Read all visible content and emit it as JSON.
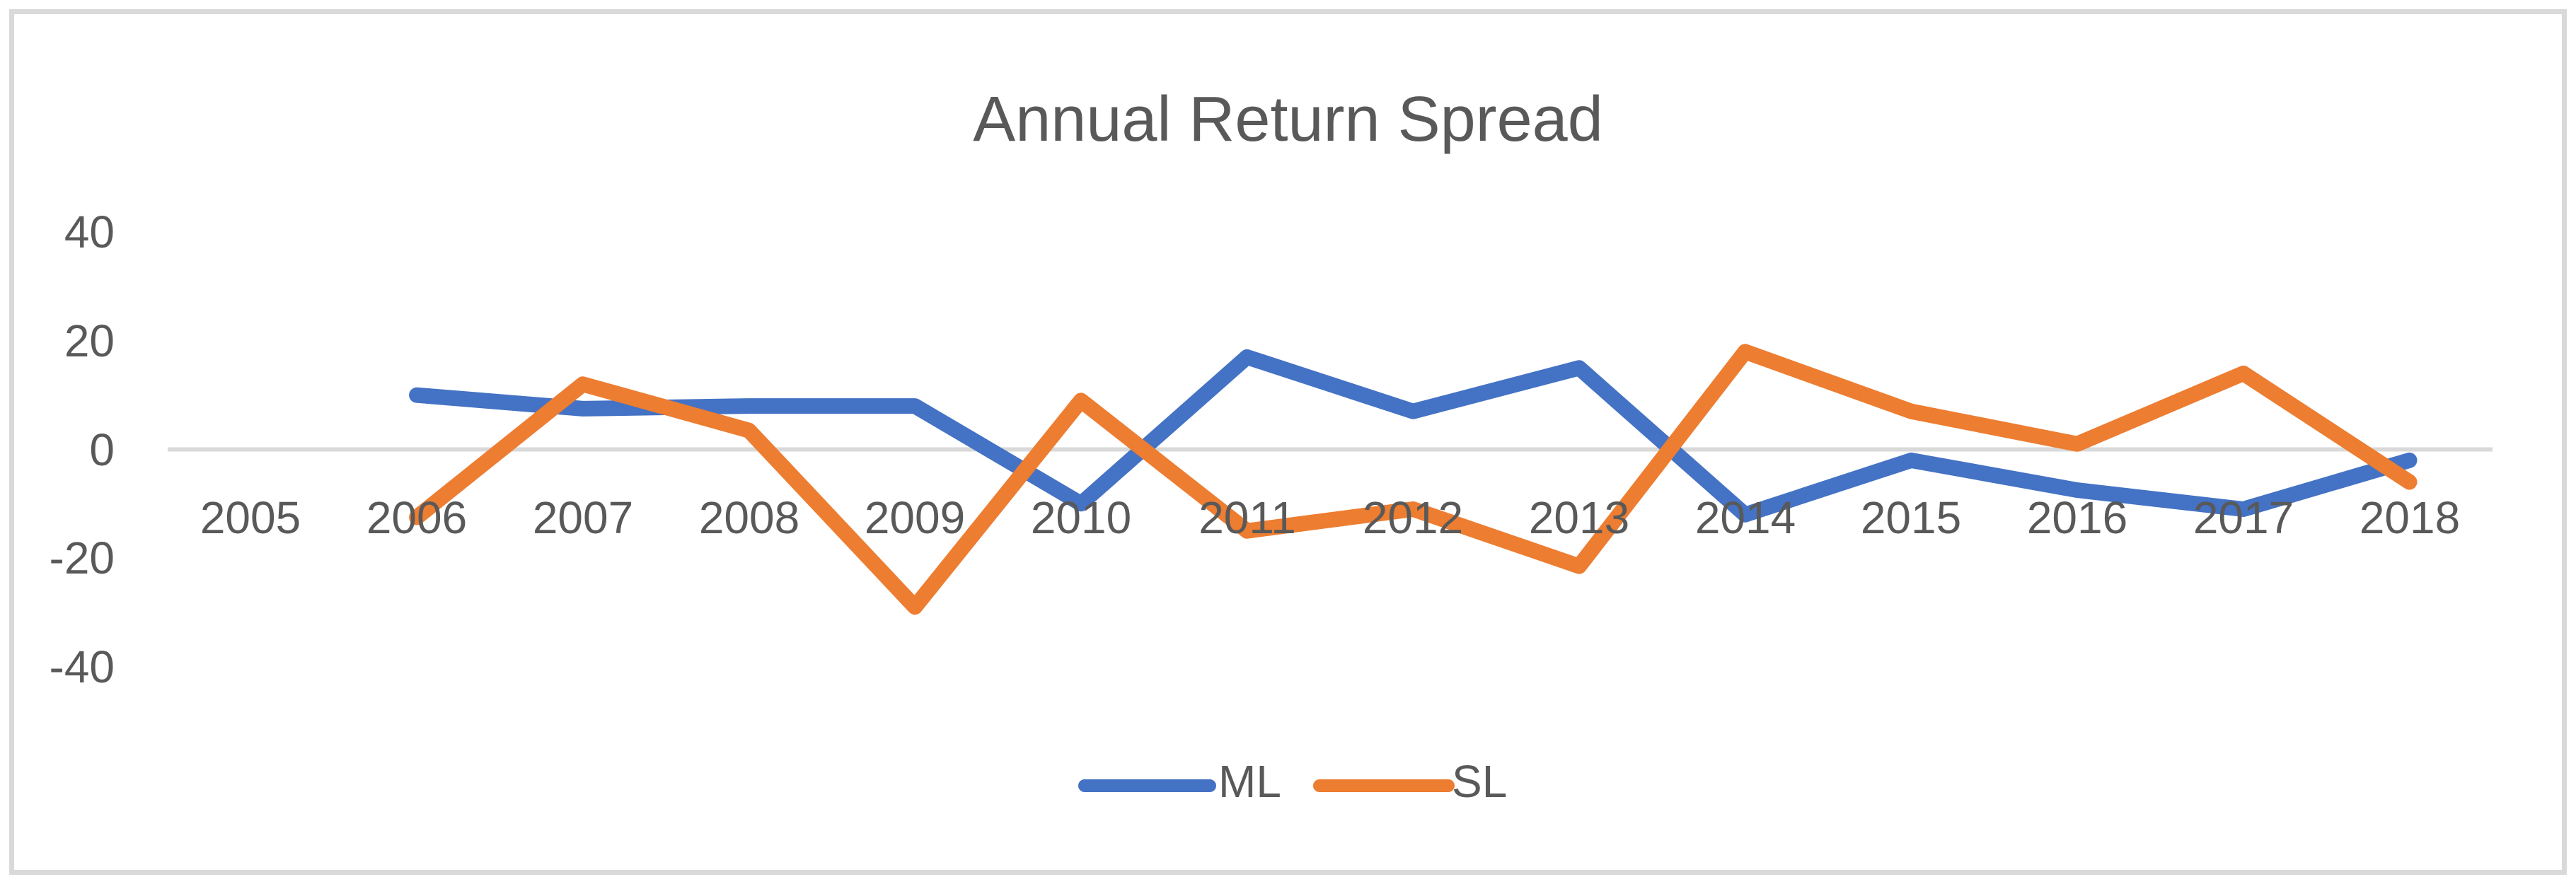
{
  "title": "Annual Return Spread",
  "axes": {
    "y_tick_labels": [
      "40",
      "20",
      "0",
      "-20",
      "-40"
    ],
    "x_tick_labels": [
      "2005",
      "2006",
      "2007",
      "2008",
      "2009",
      "2010",
      "2011",
      "2012",
      "2013",
      "2014",
      "2015",
      "2016",
      "2017",
      "2018"
    ]
  },
  "legend": {
    "items": [
      {
        "label": "ML",
        "color": "#4472C4"
      },
      {
        "label": "SL",
        "color": "#ED7D31"
      }
    ],
    "position": "bottom"
  },
  "colors": {
    "series_ml": "#4472C4",
    "series_sl": "#ED7D31",
    "text": "#595959",
    "gridline": "#D9D9D9",
    "border": "#D9D9D9",
    "background": "#FFFFFF"
  },
  "chart_data": {
    "type": "line",
    "title": "Annual Return Spread",
    "categories": [
      "2005",
      "2006",
      "2007",
      "2008",
      "2009",
      "2010",
      "2011",
      "2012",
      "2013",
      "2014",
      "2015",
      "2016",
      "2017",
      "2018"
    ],
    "series": [
      {
        "name": "ML",
        "color": "#4472C4",
        "values": [
          null,
          10,
          7.5,
          8,
          8,
          -10,
          17,
          7,
          15,
          -12,
          -2,
          -7.5,
          -11,
          -2
        ]
      },
      {
        "name": "SL",
        "color": "#ED7D31",
        "values": [
          null,
          -12.5,
          12,
          3.5,
          -29,
          9,
          -15,
          -11,
          -21.5,
          18,
          7,
          1,
          14,
          -6
        ]
      }
    ],
    "yticks": [
      40,
      20,
      0,
      -20,
      -40
    ],
    "ylim": [
      -40,
      40
    ],
    "xlabel": "",
    "ylabel": "",
    "grid": "zero-line-only",
    "legend_position": "bottom"
  }
}
